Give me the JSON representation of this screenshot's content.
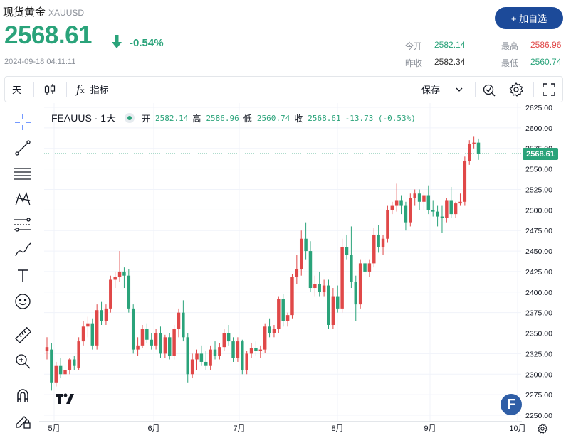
{
  "header": {
    "title": "现货黄金",
    "symbol": "XAUUSD",
    "price": "2568.61",
    "change_pct": "-0.54%",
    "timestamp": "2024-09-18 04:11:11",
    "add_button": "+ 加自选",
    "stats": {
      "open_label": "今开",
      "open_value": "2582.14",
      "high_label": "最高",
      "high_value": "2586.96",
      "prev_label": "昨收",
      "prev_value": "2582.34",
      "low_label": "最低",
      "low_value": "2560.74"
    }
  },
  "toolbar": {
    "interval": "天",
    "candle_icon": "candlestick-icon",
    "fx_icon": "function-icon",
    "indicators": "指标",
    "save": "保存",
    "chevron_icon": "chevron-down-icon",
    "replay_icon": "replay-icon",
    "settings_icon": "gear-icon",
    "fullscreen_icon": "fullscreen-icon"
  },
  "left_tools": [
    "crosshair-icon",
    "trend-line-icon",
    "horizontal-lines-icon",
    "pattern-icon",
    "fib-icon",
    "brush-icon",
    "text-icon",
    "emoji-icon",
    "ruler-icon",
    "zoom-icon",
    "magnet-icon",
    "lock-pencil-icon"
  ],
  "legend": {
    "symbol": "FEAUUS · 1天",
    "open_label": "开",
    "open": "2582.14",
    "high_label": "高",
    "high": "2586.96",
    "low_label": "低",
    "low": "2560.74",
    "close_label": "收",
    "close": "2568.61",
    "change": "-13.73 (-0.53%)"
  },
  "price_tag": "2568.61",
  "colors": {
    "up": "#e04848",
    "down": "#2aa37a",
    "accent": "#1c4a99"
  },
  "chart_data": {
    "type": "candlestick",
    "y_ticks": [
      "2625.00",
      "2600.00",
      "2575.00",
      "2550.00",
      "2525.00",
      "2500.00",
      "2475.00",
      "2450.00",
      "2425.00",
      "2400.00",
      "2375.00",
      "2350.00",
      "2325.00",
      "2300.00",
      "2275.00",
      "2250.00"
    ],
    "ylim": [
      2245,
      2630
    ],
    "x_ticks": [
      "5月",
      "6月",
      "7月",
      "8月",
      "9月",
      "10月"
    ],
    "last_price": 2568.61,
    "candles": [
      {
        "o": 2328,
        "h": 2345,
        "l": 2318,
        "c": 2333
      },
      {
        "o": 2330,
        "h": 2338,
        "l": 2280,
        "c": 2290
      },
      {
        "o": 2290,
        "h": 2315,
        "l": 2285,
        "c": 2310
      },
      {
        "o": 2310,
        "h": 2320,
        "l": 2295,
        "c": 2300
      },
      {
        "o": 2300,
        "h": 2312,
        "l": 2295,
        "c": 2305
      },
      {
        "o": 2305,
        "h": 2320,
        "l": 2300,
        "c": 2318
      },
      {
        "o": 2318,
        "h": 2322,
        "l": 2305,
        "c": 2310
      },
      {
        "o": 2308,
        "h": 2345,
        "l": 2305,
        "c": 2340
      },
      {
        "o": 2340,
        "h": 2365,
        "l": 2335,
        "c": 2358
      },
      {
        "o": 2358,
        "h": 2370,
        "l": 2345,
        "c": 2362
      },
      {
        "o": 2362,
        "h": 2368,
        "l": 2330,
        "c": 2335
      },
      {
        "o": 2335,
        "h": 2385,
        "l": 2330,
        "c": 2378
      },
      {
        "o": 2378,
        "h": 2388,
        "l": 2360,
        "c": 2365
      },
      {
        "o": 2365,
        "h": 2385,
        "l": 2360,
        "c": 2380
      },
      {
        "o": 2380,
        "h": 2420,
        "l": 2375,
        "c": 2415
      },
      {
        "o": 2415,
        "h": 2425,
        "l": 2405,
        "c": 2418
      },
      {
        "o": 2418,
        "h": 2450,
        "l": 2412,
        "c": 2425
      },
      {
        "o": 2425,
        "h": 2430,
        "l": 2405,
        "c": 2420
      },
      {
        "o": 2420,
        "h": 2428,
        "l": 2375,
        "c": 2380
      },
      {
        "o": 2380,
        "h": 2385,
        "l": 2325,
        "c": 2330
      },
      {
        "o": 2330,
        "h": 2345,
        "l": 2322,
        "c": 2335
      },
      {
        "o": 2335,
        "h": 2360,
        "l": 2332,
        "c": 2355
      },
      {
        "o": 2355,
        "h": 2362,
        "l": 2338,
        "c": 2342
      },
      {
        "o": 2342,
        "h": 2350,
        "l": 2330,
        "c": 2335
      },
      {
        "o": 2335,
        "h": 2355,
        "l": 2330,
        "c": 2350
      },
      {
        "o": 2350,
        "h": 2358,
        "l": 2320,
        "c": 2325
      },
      {
        "o": 2325,
        "h": 2348,
        "l": 2320,
        "c": 2345
      },
      {
        "o": 2345,
        "h": 2350,
        "l": 2318,
        "c": 2322
      },
      {
        "o": 2322,
        "h": 2360,
        "l": 2318,
        "c": 2355
      },
      {
        "o": 2355,
        "h": 2380,
        "l": 2345,
        "c": 2375
      },
      {
        "o": 2375,
        "h": 2390,
        "l": 2340,
        "c": 2345
      },
      {
        "o": 2345,
        "h": 2350,
        "l": 2290,
        "c": 2300
      },
      {
        "o": 2300,
        "h": 2325,
        "l": 2295,
        "c": 2318
      },
      {
        "o": 2318,
        "h": 2330,
        "l": 2305,
        "c": 2325
      },
      {
        "o": 2325,
        "h": 2335,
        "l": 2310,
        "c": 2315
      },
      {
        "o": 2315,
        "h": 2328,
        "l": 2305,
        "c": 2310
      },
      {
        "o": 2310,
        "h": 2335,
        "l": 2305,
        "c": 2330
      },
      {
        "o": 2330,
        "h": 2340,
        "l": 2318,
        "c": 2322
      },
      {
        "o": 2322,
        "h": 2338,
        "l": 2318,
        "c": 2333
      },
      {
        "o": 2333,
        "h": 2355,
        "l": 2328,
        "c": 2350
      },
      {
        "o": 2350,
        "h": 2360,
        "l": 2335,
        "c": 2340
      },
      {
        "o": 2340,
        "h": 2345,
        "l": 2315,
        "c": 2320
      },
      {
        "o": 2320,
        "h": 2345,
        "l": 2315,
        "c": 2340
      },
      {
        "o": 2340,
        "h": 2342,
        "l": 2300,
        "c": 2305
      },
      {
        "o": 2305,
        "h": 2328,
        "l": 2300,
        "c": 2325
      },
      {
        "o": 2325,
        "h": 2338,
        "l": 2320,
        "c": 2332
      },
      {
        "o": 2332,
        "h": 2340,
        "l": 2322,
        "c": 2328
      },
      {
        "o": 2328,
        "h": 2335,
        "l": 2320,
        "c": 2330
      },
      {
        "o": 2330,
        "h": 2362,
        "l": 2326,
        "c": 2358
      },
      {
        "o": 2358,
        "h": 2368,
        "l": 2345,
        "c": 2350
      },
      {
        "o": 2350,
        "h": 2360,
        "l": 2345,
        "c": 2355
      },
      {
        "o": 2355,
        "h": 2395,
        "l": 2350,
        "c": 2392
      },
      {
        "o": 2392,
        "h": 2398,
        "l": 2358,
        "c": 2365
      },
      {
        "o": 2365,
        "h": 2375,
        "l": 2358,
        "c": 2372
      },
      {
        "o": 2372,
        "h": 2422,
        "l": 2368,
        "c": 2418
      },
      {
        "o": 2418,
        "h": 2445,
        "l": 2410,
        "c": 2428
      },
      {
        "o": 2428,
        "h": 2475,
        "l": 2420,
        "c": 2465
      },
      {
        "o": 2465,
        "h": 2485,
        "l": 2440,
        "c": 2450
      },
      {
        "o": 2450,
        "h": 2462,
        "l": 2400,
        "c": 2405
      },
      {
        "o": 2405,
        "h": 2420,
        "l": 2395,
        "c": 2410
      },
      {
        "o": 2410,
        "h": 2425,
        "l": 2395,
        "c": 2400
      },
      {
        "o": 2400,
        "h": 2415,
        "l": 2395,
        "c": 2408
      },
      {
        "o": 2408,
        "h": 2415,
        "l": 2355,
        "c": 2360
      },
      {
        "o": 2360,
        "h": 2405,
        "l": 2355,
        "c": 2395
      },
      {
        "o": 2395,
        "h": 2408,
        "l": 2375,
        "c": 2380
      },
      {
        "o": 2380,
        "h": 2465,
        "l": 2375,
        "c": 2455
      },
      {
        "o": 2455,
        "h": 2470,
        "l": 2440,
        "c": 2445
      },
      {
        "o": 2445,
        "h": 2480,
        "l": 2405,
        "c": 2412
      },
      {
        "o": 2412,
        "h": 2420,
        "l": 2365,
        "c": 2385
      },
      {
        "o": 2385,
        "h": 2440,
        "l": 2380,
        "c": 2435
      },
      {
        "o": 2435,
        "h": 2440,
        "l": 2420,
        "c": 2425
      },
      {
        "o": 2425,
        "h": 2440,
        "l": 2418,
        "c": 2435
      },
      {
        "o": 2435,
        "h": 2478,
        "l": 2430,
        "c": 2470
      },
      {
        "o": 2470,
        "h": 2482,
        "l": 2448,
        "c": 2455
      },
      {
        "o": 2455,
        "h": 2470,
        "l": 2445,
        "c": 2465
      },
      {
        "o": 2465,
        "h": 2505,
        "l": 2460,
        "c": 2500
      },
      {
        "o": 2500,
        "h": 2510,
        "l": 2495,
        "c": 2505
      },
      {
        "o": 2505,
        "h": 2532,
        "l": 2498,
        "c": 2512
      },
      {
        "o": 2512,
        "h": 2518,
        "l": 2495,
        "c": 2505
      },
      {
        "o": 2505,
        "h": 2510,
        "l": 2475,
        "c": 2485
      },
      {
        "o": 2485,
        "h": 2520,
        "l": 2480,
        "c": 2515
      },
      {
        "o": 2515,
        "h": 2525,
        "l": 2505,
        "c": 2520
      },
      {
        "o": 2520,
        "h": 2525,
        "l": 2500,
        "c": 2510
      },
      {
        "o": 2510,
        "h": 2522,
        "l": 2500,
        "c": 2518
      },
      {
        "o": 2518,
        "h": 2530,
        "l": 2495,
        "c": 2500
      },
      {
        "o": 2500,
        "h": 2512,
        "l": 2492,
        "c": 2498
      },
      {
        "o": 2498,
        "h": 2505,
        "l": 2480,
        "c": 2492
      },
      {
        "o": 2492,
        "h": 2505,
        "l": 2472,
        "c": 2490
      },
      {
        "o": 2490,
        "h": 2515,
        "l": 2485,
        "c": 2512
      },
      {
        "o": 2512,
        "h": 2528,
        "l": 2490,
        "c": 2495
      },
      {
        "o": 2495,
        "h": 2510,
        "l": 2490,
        "c": 2508
      },
      {
        "o": 2508,
        "h": 2520,
        "l": 2505,
        "c": 2510
      },
      {
        "o": 2510,
        "h": 2565,
        "l": 2505,
        "c": 2560
      },
      {
        "o": 2560,
        "h": 2585,
        "l": 2555,
        "c": 2580
      },
      {
        "o": 2580,
        "h": 2590,
        "l": 2575,
        "c": 2582
      },
      {
        "o": 2582,
        "h": 2587,
        "l": 2561,
        "c": 2568.61
      }
    ]
  }
}
